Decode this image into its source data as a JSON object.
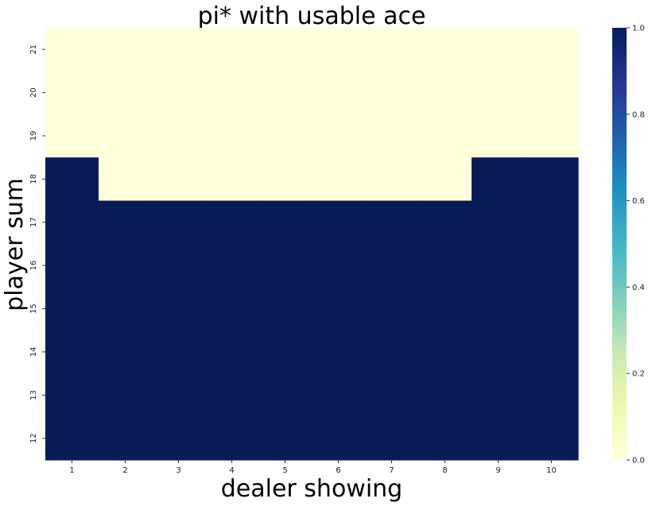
{
  "chart_data": {
    "type": "heatmap",
    "title": "pi* with usable ace",
    "xlabel": "dealer showing",
    "ylabel": "player sum",
    "x_categories": [
      "1",
      "2",
      "3",
      "4",
      "5",
      "6",
      "7",
      "8",
      "9",
      "10"
    ],
    "y_categories": [
      "21",
      "20",
      "19",
      "18",
      "17",
      "16",
      "15",
      "14",
      "13",
      "12"
    ],
    "values": [
      [
        0,
        0,
        0,
        0,
        0,
        0,
        0,
        0,
        0,
        0
      ],
      [
        0,
        0,
        0,
        0,
        0,
        0,
        0,
        0,
        0,
        0
      ],
      [
        0,
        0,
        0,
        0,
        0,
        0,
        0,
        0,
        0,
        0
      ],
      [
        1,
        0,
        0,
        0,
        0,
        0,
        0,
        0,
        1,
        1
      ],
      [
        1,
        1,
        1,
        1,
        1,
        1,
        1,
        1,
        1,
        1
      ],
      [
        1,
        1,
        1,
        1,
        1,
        1,
        1,
        1,
        1,
        1
      ],
      [
        1,
        1,
        1,
        1,
        1,
        1,
        1,
        1,
        1,
        1
      ],
      [
        1,
        1,
        1,
        1,
        1,
        1,
        1,
        1,
        1,
        1
      ],
      [
        1,
        1,
        1,
        1,
        1,
        1,
        1,
        1,
        1,
        1
      ],
      [
        1,
        1,
        1,
        1,
        1,
        1,
        1,
        1,
        1,
        1
      ]
    ],
    "colorbar": {
      "range": [
        0,
        1
      ],
      "ticks": [
        "0.0",
        "0.2",
        "0.4",
        "0.6",
        "0.8",
        "1.0"
      ],
      "colormap": "YlGnBu",
      "low_color": "#ffffd9",
      "high_color": "#081d58"
    }
  }
}
